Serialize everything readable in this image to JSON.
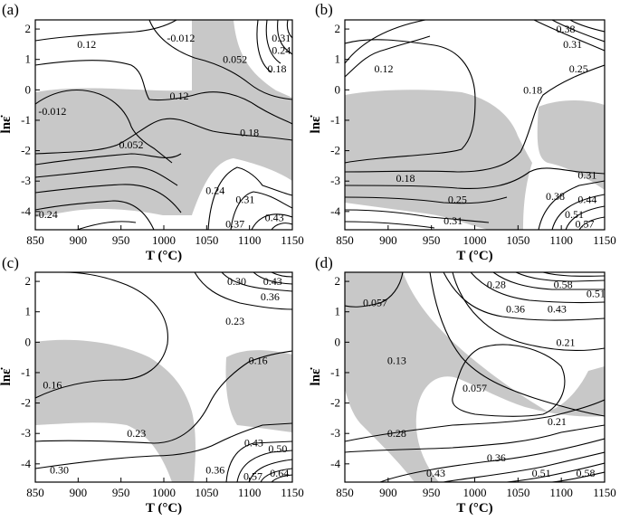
{
  "chart_data": [
    {
      "panel": "(a)",
      "type": "contour",
      "xlabel": "T (°C)",
      "ylabel": "lnε̇",
      "xlim": [
        850,
        1150
      ],
      "ylim": [
        -4.6,
        2.3
      ],
      "xticks": [
        "850",
        "900",
        "950",
        "1000",
        "1050",
        "1100",
        "1150"
      ],
      "yticks": [
        "2",
        "1",
        "0",
        "-1",
        "-2",
        "-3",
        "-4"
      ],
      "contour_labels": [
        {
          "text": "0.12",
          "x": 910,
          "y": 1.5
        },
        {
          "text": "-0.012",
          "x": 1020,
          "y": 1.7
        },
        {
          "text": "0.31",
          "x": 1137,
          "y": 1.7
        },
        {
          "text": "0.24",
          "x": 1137,
          "y": 1.3
        },
        {
          "text": "0.052",
          "x": 1083,
          "y": 1.0
        },
        {
          "text": "0.18",
          "x": 1132,
          "y": 0.7
        },
        {
          "text": "0.12",
          "x": 1018,
          "y": -0.2
        },
        {
          "text": "-0.012",
          "x": 870,
          "y": -0.7
        },
        {
          "text": "0.18",
          "x": 1100,
          "y": -1.4
        },
        {
          "text": "0.052",
          "x": 962,
          "y": -1.8
        },
        {
          "text": "0.24",
          "x": 1060,
          "y": -3.3
        },
        {
          "text": "0.31",
          "x": 1095,
          "y": -3.6
        },
        {
          "text": "-0.24",
          "x": 863,
          "y": -4.1
        },
        {
          "text": "0.37",
          "x": 1083,
          "y": -4.4
        },
        {
          "text": "0.43",
          "x": 1129,
          "y": -4.2
        }
      ]
    },
    {
      "panel": "(b)",
      "type": "contour",
      "xlabel": "T (°C)",
      "ylabel": "lnε̇",
      "xlim": [
        850,
        1150
      ],
      "ylim": [
        -4.6,
        2.3
      ],
      "xticks": [
        "850",
        "900",
        "950",
        "1000",
        "1050",
        "1100",
        "1150"
      ],
      "yticks": [
        "2",
        "1",
        "0",
        "-1",
        "-2",
        "-3",
        "-4"
      ],
      "contour_labels": [
        {
          "text": "0.38",
          "x": 1105,
          "y": 2.0
        },
        {
          "text": "0.31",
          "x": 1113,
          "y": 1.5
        },
        {
          "text": "0.12",
          "x": 895,
          "y": 0.7
        },
        {
          "text": "0.25",
          "x": 1120,
          "y": 0.7
        },
        {
          "text": "0.18",
          "x": 1067,
          "y": 0.0
        },
        {
          "text": "0.31",
          "x": 1130,
          "y": -2.8
        },
        {
          "text": "0.18",
          "x": 920,
          "y": -2.9
        },
        {
          "text": "0.25",
          "x": 980,
          "y": -3.6
        },
        {
          "text": "0.38",
          "x": 1093,
          "y": -3.5
        },
        {
          "text": "0.44",
          "x": 1130,
          "y": -3.6
        },
        {
          "text": "0.51",
          "x": 1115,
          "y": -4.1
        },
        {
          "text": "0.31",
          "x": 975,
          "y": -4.3
        },
        {
          "text": "0.57",
          "x": 1127,
          "y": -4.4
        }
      ]
    },
    {
      "panel": "(c)",
      "type": "contour",
      "xlabel": "T (°C)",
      "ylabel": "lnε̇",
      "xlim": [
        850,
        1150
      ],
      "ylim": [
        -4.6,
        2.3
      ],
      "xticks": [
        "850",
        "900",
        "950",
        "1000",
        "1050",
        "1100",
        "1150"
      ],
      "yticks": [
        "2",
        "1",
        "0",
        "-1",
        "-2",
        "-3",
        "-4"
      ],
      "contour_labels": [
        {
          "text": "0.30",
          "x": 1085,
          "y": 2.0
        },
        {
          "text": "0.43",
          "x": 1127,
          "y": 2.0
        },
        {
          "text": "0.36",
          "x": 1124,
          "y": 1.5
        },
        {
          "text": "0.23",
          "x": 1083,
          "y": 0.7
        },
        {
          "text": "0.16",
          "x": 1110,
          "y": -0.6
        },
        {
          "text": "0.16",
          "x": 870,
          "y": -1.4
        },
        {
          "text": "0.23",
          "x": 968,
          "y": -3.0
        },
        {
          "text": "0.43",
          "x": 1105,
          "y": -3.3
        },
        {
          "text": "0.50",
          "x": 1133,
          "y": -3.5
        },
        {
          "text": "0.30",
          "x": 878,
          "y": -4.2
        },
        {
          "text": "0.36",
          "x": 1060,
          "y": -4.2
        },
        {
          "text": "0.57",
          "x": 1104,
          "y": -4.4
        },
        {
          "text": "0.64",
          "x": 1135,
          "y": -4.3
        }
      ]
    },
    {
      "panel": "(d)",
      "type": "contour",
      "xlabel": "T (°C)",
      "ylabel": "lnε̇",
      "xlim": [
        850,
        1150
      ],
      "ylim": [
        -4.6,
        2.3
      ],
      "xticks": [
        "850",
        "900",
        "950",
        "1000",
        "1050",
        "1100",
        "1150"
      ],
      "yticks": [
        "2",
        "1",
        "0",
        "-1",
        "-2",
        "-3",
        "-4"
      ],
      "contour_labels": [
        {
          "text": "0.28",
          "x": 1025,
          "y": 1.9
        },
        {
          "text": "0.58",
          "x": 1102,
          "y": 1.9
        },
        {
          "text": "0.51",
          "x": 1140,
          "y": 1.6
        },
        {
          "text": "0.057",
          "x": 885,
          "y": 1.3
        },
        {
          "text": "0.36",
          "x": 1047,
          "y": 1.1
        },
        {
          "text": "0.43",
          "x": 1095,
          "y": 1.1
        },
        {
          "text": "0.21",
          "x": 1105,
          "y": 0.0
        },
        {
          "text": "0.13",
          "x": 910,
          "y": -0.6
        },
        {
          "text": "0.057",
          "x": 1000,
          "y": -1.5
        },
        {
          "text": "0.21",
          "x": 1095,
          "y": -2.6
        },
        {
          "text": "0.28",
          "x": 910,
          "y": -3.0
        },
        {
          "text": "0.36",
          "x": 1025,
          "y": -3.8
        },
        {
          "text": "0.43",
          "x": 955,
          "y": -4.3
        },
        {
          "text": "0.51",
          "x": 1077,
          "y": -4.3
        },
        {
          "text": "0.58",
          "x": 1128,
          "y": -4.3
        }
      ]
    }
  ]
}
